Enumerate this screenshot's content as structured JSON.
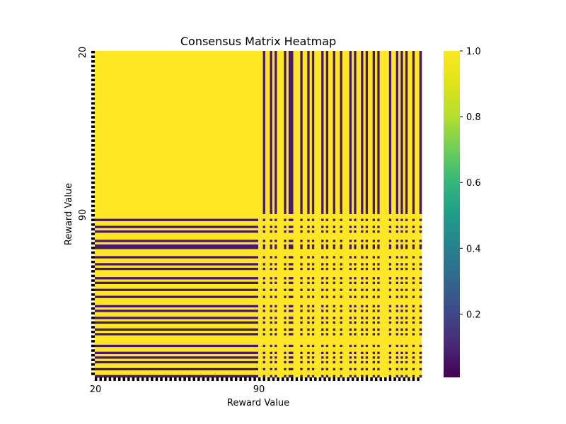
{
  "chart_data": {
    "type": "heatmap",
    "title": "Consensus Matrix Heatmap",
    "xlabel": "Reward Value",
    "ylabel": "Reward Value",
    "x_tick_labels": [
      "20",
      "90"
    ],
    "y_tick_labels": [
      "20",
      "90"
    ],
    "colormap": "viridis",
    "vmin": 0.0,
    "vmax": 1.0,
    "colorbar_ticks": [
      {
        "value": 1.0,
        "label": "1.0"
      },
      {
        "value": 0.8,
        "label": "0.8"
      },
      {
        "value": 0.6,
        "label": "0.6"
      },
      {
        "value": 0.4,
        "label": "0.4"
      },
      {
        "value": 0.2,
        "label": "0.2"
      }
    ],
    "matrix_size": 140,
    "cluster_a_size": 70,
    "cluster_b_pattern": "1101101011101001110110101110101101101110101101011010111101101010110110",
    "grid": false
  }
}
